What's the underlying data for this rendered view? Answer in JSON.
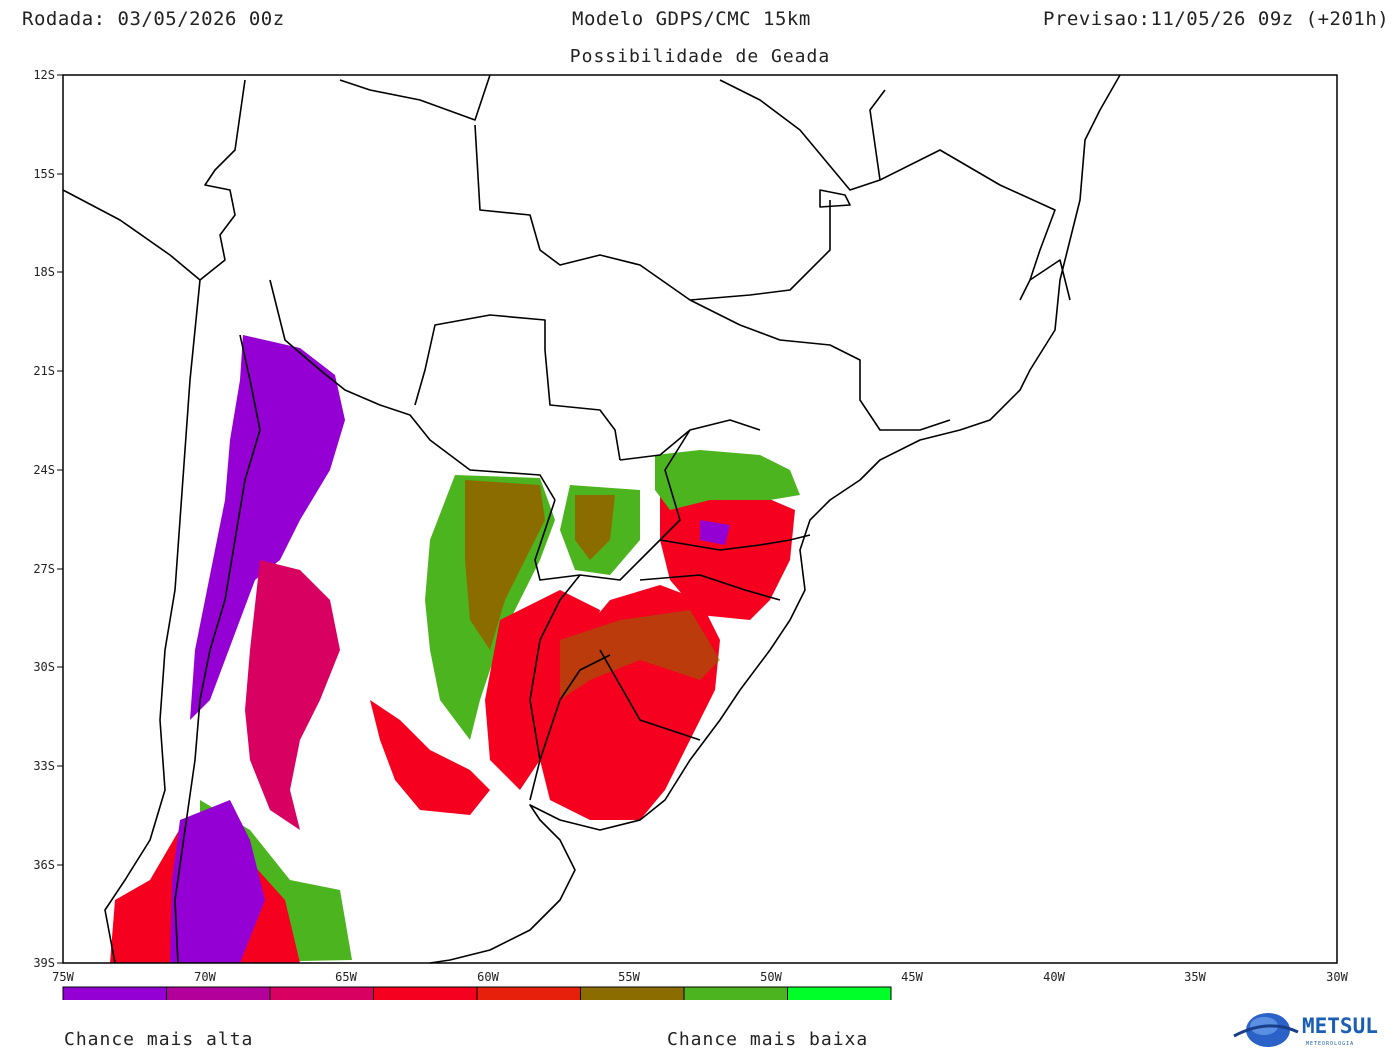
{
  "header": {
    "run": "Rodada: 03/05/2026 00z",
    "model": "Modelo GDPS/CMC 15km",
    "forecast": "Previsao:11/05/26 09z (+201h)",
    "subtitle": "Possibilidade de Geada"
  },
  "axes": {
    "lat_ticks": [
      "12S",
      "15S",
      "18S",
      "21S",
      "24S",
      "27S",
      "30S",
      "33S",
      "36S",
      "39S"
    ],
    "lon_ticks": [
      "75W",
      "70W",
      "65W",
      "60W",
      "55W",
      "50W",
      "45W",
      "40W",
      "35W",
      "30W"
    ]
  },
  "legend": {
    "colors": [
      "#9400d3",
      "#b4009a",
      "#d80060",
      "#f5001e",
      "#e6200a",
      "#8b6c00",
      "#4cb41e",
      "#00ff28"
    ],
    "high_label": "Chance mais alta",
    "low_label": "Chance mais baixa"
  },
  "brand": {
    "name": "METSUL",
    "tagline": "METEOROLOGIA",
    "color": "#1a5fb4"
  }
}
